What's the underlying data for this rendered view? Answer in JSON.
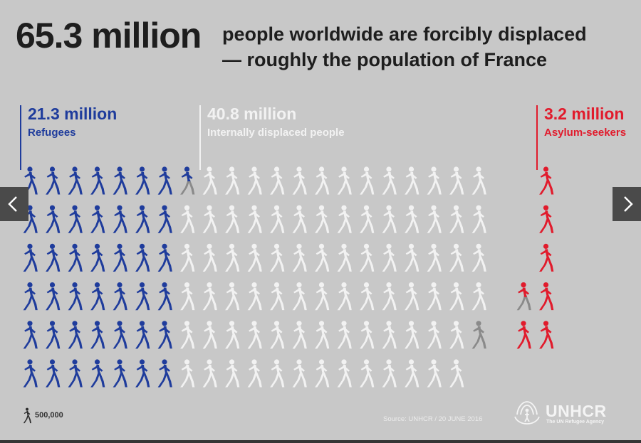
{
  "headline": {
    "total": "65.3 million",
    "line1": "people worldwide are forcibly displaced",
    "line2": "— roughly the population of France"
  },
  "colors": {
    "refugees": "#1f3c9c",
    "internally_displaced": "#f2f2f2",
    "asylum_seekers": "#e11b2c",
    "partial": "#8a8a8a",
    "background": "#c8c8c8"
  },
  "chart_data": {
    "type": "pictogram",
    "unit_value": 500000,
    "unit_label": "500,000",
    "series": [
      {
        "name": "Refugees",
        "value_label": "21.3 million",
        "value": 21.3,
        "icons": 42.6,
        "color": "#1f3c9c"
      },
      {
        "name": "Internally displaced people",
        "value_label": "40.8 million",
        "value": 40.8,
        "icons": 81.6,
        "color": "#f2f2f2"
      },
      {
        "name": "Asylum-seekers",
        "value_label": "3.2 million",
        "value": 3.2,
        "icons": 6.4,
        "color": "#e11b2c"
      }
    ]
  },
  "footer": {
    "source": "Source: UNHCR / 20 JUNE 2016",
    "scale_label": "500,000",
    "brand": "UNHCR",
    "brand_tagline": "The UN Refugee Agency"
  },
  "nav": {
    "prev_icon": "chevron-left-icon",
    "next_icon": "chevron-right-icon"
  }
}
